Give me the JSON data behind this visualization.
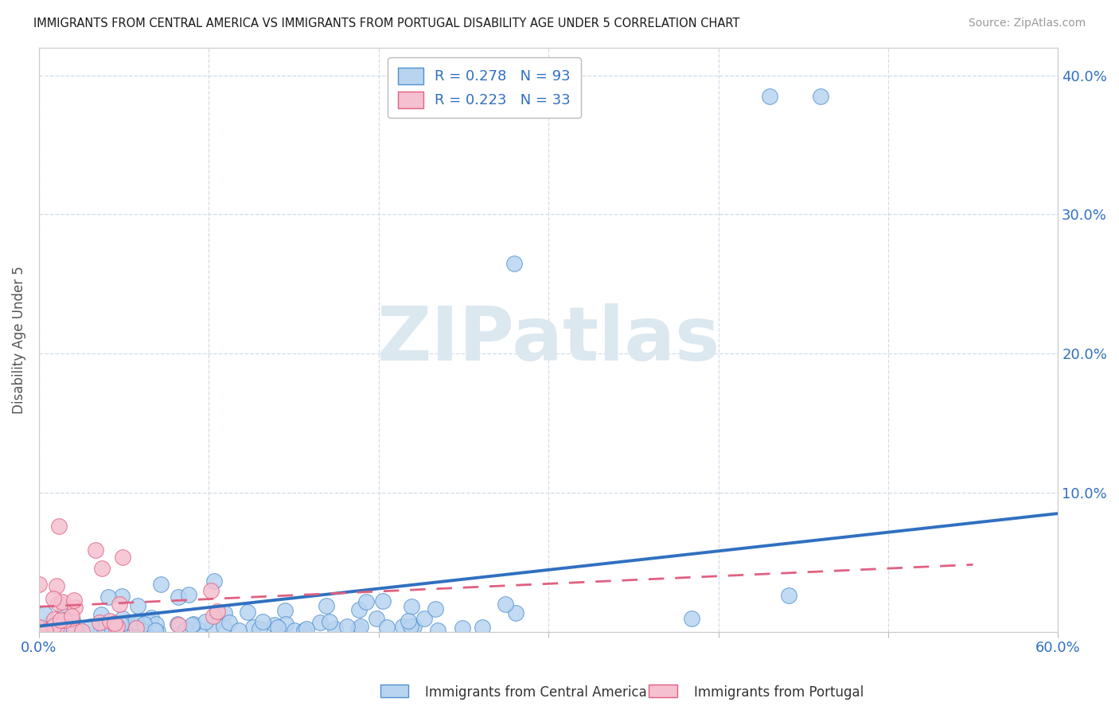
{
  "title": "IMMIGRANTS FROM CENTRAL AMERICA VS IMMIGRANTS FROM PORTUGAL DISABILITY AGE UNDER 5 CORRELATION CHART",
  "source": "Source: ZipAtlas.com",
  "ylabel": "Disability Age Under 5",
  "legend_label_blue": "Immigrants from Central America",
  "legend_label_pink": "Immigrants from Portugal",
  "R_blue": 0.278,
  "N_blue": 93,
  "R_pink": 0.223,
  "N_pink": 33,
  "blue_fill": "#b8d4f0",
  "blue_edge": "#5090d0",
  "pink_fill": "#f5c0d0",
  "pink_edge": "#e06080",
  "blue_line": "#3070c0",
  "pink_line": "#e06080",
  "grid_color": "#d0dde8",
  "watermark_color": "#dce8f0",
  "xmin": 0.0,
  "xmax": 0.6,
  "ymin": 0.0,
  "ymax": 0.42,
  "blue_scatter_seed": 7,
  "pink_scatter_seed": 12,
  "blue_intercept": 0.004,
  "blue_slope": 0.135,
  "pink_intercept": 0.018,
  "pink_slope": 0.055
}
